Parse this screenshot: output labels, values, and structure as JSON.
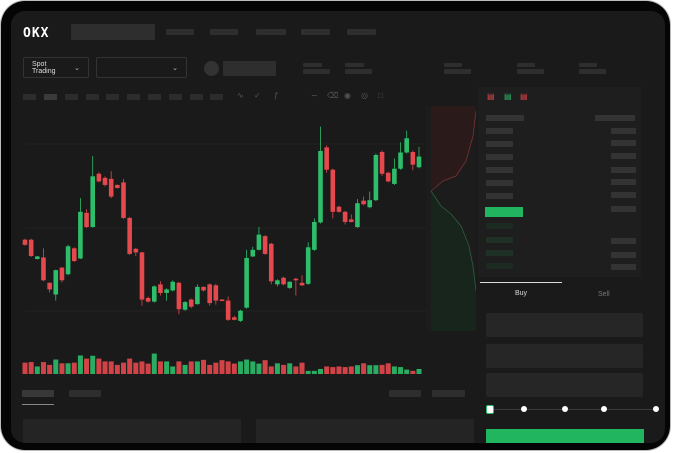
{
  "header": {
    "logo": "OKX",
    "market_selector": {
      "label": "Spot Trading",
      "icon": "chevron-down-icon"
    },
    "pair_selector": {
      "label": "",
      "icon": "chevron-down-icon"
    }
  },
  "chart_toolbar": {
    "icons": [
      "line-style-icon",
      "indicator-icon",
      "fx-icon",
      "wave-icon",
      "ruler-icon",
      "camera-icon",
      "settings-icon",
      "fullscreen-icon"
    ]
  },
  "orderbook": {
    "view_icons": [
      "orderbook-both-icon",
      "orderbook-bids-icon",
      "orderbook-asks-icon"
    ]
  },
  "trade_panel": {
    "tabs": [
      {
        "label": "Buy",
        "active": true
      },
      {
        "label": "Sell",
        "active": false
      }
    ],
    "slider_level": 0,
    "slider_steps": [
      0,
      25,
      50,
      75,
      100
    ]
  },
  "colors": {
    "up": "#2ebd6b",
    "down": "#e5484d",
    "background": "#1a1a1a",
    "buy_button": "#22b55f"
  },
  "chart_data": {
    "type": "candlestick",
    "candles": [
      {
        "o": 220,
        "c": 210,
        "h": 222,
        "l": 208
      },
      {
        "o": 220,
        "c": 188,
        "h": 222,
        "l": 186
      },
      {
        "o": 182,
        "c": 187,
        "h": 188,
        "l": 181
      },
      {
        "o": 185,
        "c": 140,
        "h": 203,
        "l": 138
      },
      {
        "o": 135,
        "c": 122,
        "h": 136,
        "l": 116
      },
      {
        "o": 112,
        "c": 160,
        "h": 161,
        "l": 100
      },
      {
        "o": 165,
        "c": 140,
        "h": 166,
        "l": 136
      },
      {
        "o": 152,
        "c": 207,
        "h": 210,
        "l": 150
      },
      {
        "o": 203,
        "c": 178,
        "h": 205,
        "l": 176
      },
      {
        "o": 183,
        "c": 275,
        "h": 302,
        "l": 182
      },
      {
        "o": 273,
        "c": 245,
        "h": 280,
        "l": 243
      },
      {
        "o": 245,
        "c": 345,
        "h": 385,
        "l": 244
      },
      {
        "o": 350,
        "c": 335,
        "h": 353,
        "l": 333
      },
      {
        "o": 342,
        "c": 328,
        "h": 345,
        "l": 325
      },
      {
        "o": 340,
        "c": 305,
        "h": 355,
        "l": 302
      },
      {
        "o": 328,
        "c": 322,
        "h": 329,
        "l": 321
      },
      {
        "o": 333,
        "c": 263,
        "h": 340,
        "l": 261
      },
      {
        "o": 263,
        "c": 192,
        "h": 265,
        "l": 190
      },
      {
        "o": 202,
        "c": 195,
        "h": 204,
        "l": 188
      },
      {
        "o": 195,
        "c": 102,
        "h": 196,
        "l": 90
      },
      {
        "o": 105,
        "c": 98,
        "h": 108,
        "l": 96
      },
      {
        "o": 98,
        "c": 128,
        "h": 130,
        "l": 96
      },
      {
        "o": 132,
        "c": 115,
        "h": 138,
        "l": 110
      },
      {
        "o": 115,
        "c": 122,
        "h": 124,
        "l": 100
      },
      {
        "o": 120,
        "c": 137,
        "h": 140,
        "l": 118
      },
      {
        "o": 135,
        "c": 83,
        "h": 137,
        "l": 73
      },
      {
        "o": 82,
        "c": 97,
        "h": 99,
        "l": 80
      },
      {
        "o": 102,
        "c": 88,
        "h": 104,
        "l": 85
      },
      {
        "o": 93,
        "c": 127,
        "h": 132,
        "l": 92
      },
      {
        "o": 127,
        "c": 120,
        "h": 128,
        "l": 118
      },
      {
        "o": 132,
        "c": 95,
        "h": 134,
        "l": 90
      },
      {
        "o": 130,
        "c": 100,
        "h": 133,
        "l": 92
      },
      {
        "o": 102,
        "c": 100,
        "h": 103,
        "l": 99
      },
      {
        "o": 100,
        "c": 62,
        "h": 108,
        "l": 60
      },
      {
        "o": 67,
        "c": 62,
        "h": 70,
        "l": 61
      },
      {
        "o": 60,
        "c": 80,
        "h": 82,
        "l": 58
      },
      {
        "o": 86,
        "c": 184,
        "h": 200,
        "l": 84
      },
      {
        "o": 187,
        "c": 200,
        "h": 206,
        "l": 186
      },
      {
        "o": 200,
        "c": 230,
        "h": 245,
        "l": 199
      },
      {
        "o": 227,
        "c": 192,
        "h": 229,
        "l": 190
      },
      {
        "o": 212,
        "c": 138,
        "h": 214,
        "l": 132
      },
      {
        "o": 132,
        "c": 140,
        "h": 142,
        "l": 128
      },
      {
        "o": 145,
        "c": 132,
        "h": 147,
        "l": 130
      },
      {
        "o": 125,
        "c": 137,
        "h": 138,
        "l": 123
      },
      {
        "o": 143,
        "c": 140,
        "h": 145,
        "l": 110
      },
      {
        "o": 135,
        "c": 130,
        "h": 150,
        "l": 129
      },
      {
        "o": 133,
        "c": 205,
        "h": 215,
        "l": 131
      },
      {
        "o": 200,
        "c": 255,
        "h": 262,
        "l": 198
      },
      {
        "o": 254,
        "c": 395,
        "h": 443,
        "l": 252
      },
      {
        "o": 402,
        "c": 358,
        "h": 406,
        "l": 352
      },
      {
        "o": 358,
        "c": 275,
        "h": 360,
        "l": 262
      },
      {
        "o": 285,
        "c": 275,
        "h": 287,
        "l": 273
      },
      {
        "o": 275,
        "c": 255,
        "h": 277,
        "l": 250
      },
      {
        "o": 260,
        "c": 255,
        "h": 270,
        "l": 254
      },
      {
        "o": 245,
        "c": 292,
        "h": 300,
        "l": 243
      },
      {
        "o": 297,
        "c": 290,
        "h": 305,
        "l": 288
      },
      {
        "o": 284,
        "c": 298,
        "h": 315,
        "l": 282
      },
      {
        "o": 298,
        "c": 387,
        "h": 390,
        "l": 296
      },
      {
        "o": 393,
        "c": 350,
        "h": 396,
        "l": 346
      },
      {
        "o": 352,
        "c": 335,
        "h": 354,
        "l": 333
      },
      {
        "o": 330,
        "c": 360,
        "h": 380,
        "l": 328
      },
      {
        "o": 360,
        "c": 392,
        "h": 412,
        "l": 358
      },
      {
        "o": 392,
        "c": 420,
        "h": 435,
        "l": 390
      },
      {
        "o": 393,
        "c": 368,
        "h": 396,
        "l": 357
      },
      {
        "o": 363,
        "c": 384,
        "h": 403,
        "l": 361
      }
    ],
    "volume": [
      36,
      38,
      24,
      38,
      29,
      46,
      34,
      34,
      36,
      59,
      49,
      58,
      49,
      40,
      40,
      29,
      36,
      49,
      36,
      40,
      33,
      65,
      40,
      40,
      24,
      40,
      29,
      40,
      40,
      45,
      29,
      36,
      44,
      40,
      33,
      40,
      46,
      40,
      33,
      44,
      24,
      34,
      29,
      34,
      24,
      36,
      10,
      10,
      16,
      24,
      22,
      24,
      22,
      24,
      28,
      34,
      28,
      28,
      29,
      34,
      24,
      22,
      14,
      10,
      16
    ]
  }
}
